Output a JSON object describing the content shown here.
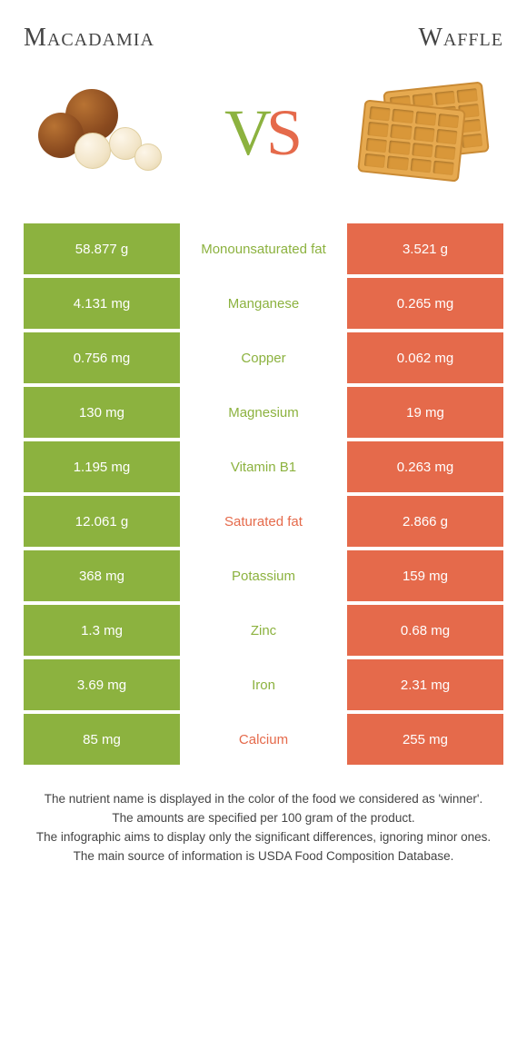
{
  "colors": {
    "left": "#8cb23f",
    "right": "#e56a4b",
    "bg": "#ffffff",
    "text": "#444444"
  },
  "header": {
    "left_title": "Macadamia",
    "right_title": "Waffle",
    "vs_v": "V",
    "vs_s": "S"
  },
  "rows": [
    {
      "left": "58.877 g",
      "label": "Monounsaturated fat",
      "right": "3.521 g",
      "winner": "left"
    },
    {
      "left": "4.131 mg",
      "label": "Manganese",
      "right": "0.265 mg",
      "winner": "left"
    },
    {
      "left": "0.756 mg",
      "label": "Copper",
      "right": "0.062 mg",
      "winner": "left"
    },
    {
      "left": "130 mg",
      "label": "Magnesium",
      "right": "19 mg",
      "winner": "left"
    },
    {
      "left": "1.195 mg",
      "label": "Vitamin B1",
      "right": "0.263 mg",
      "winner": "left"
    },
    {
      "left": "12.061 g",
      "label": "Saturated fat",
      "right": "2.866 g",
      "winner": "right"
    },
    {
      "left": "368 mg",
      "label": "Potassium",
      "right": "159 mg",
      "winner": "left"
    },
    {
      "left": "1.3 mg",
      "label": "Zinc",
      "right": "0.68 mg",
      "winner": "left"
    },
    {
      "left": "3.69 mg",
      "label": "Iron",
      "right": "2.31 mg",
      "winner": "left"
    },
    {
      "left": "85 mg",
      "label": "Calcium",
      "right": "255 mg",
      "winner": "right"
    }
  ],
  "footer": {
    "line1": "The nutrient name is displayed in the color of the food we considered as 'winner'.",
    "line2": "The amounts are specified per 100 gram of the product.",
    "line3": "The infographic aims to display only the significant differences, ignoring minor ones.",
    "line4": "The main source of information is USDA Food Composition Database."
  }
}
